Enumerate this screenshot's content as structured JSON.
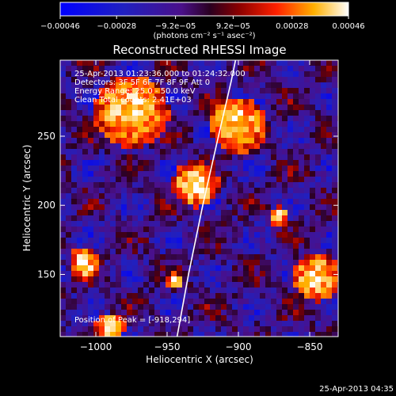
{
  "chart_data": {
    "type": "heatmap",
    "title": "Reconstructed RHESSI Image",
    "xlabel": "Heliocentric X (arcsec)",
    "ylabel": "Heliocentric Y (arcsec)",
    "xlim": [
      -1025,
      -830
    ],
    "ylim": [
      105,
      305
    ],
    "x_ticks": [
      -1000,
      -950,
      -900,
      -850
    ],
    "x_tick_labels": [
      "−1000",
      "−950",
      "−900",
      "−850"
    ],
    "y_ticks": [
      150,
      200,
      250
    ],
    "y_tick_labels": [
      "150",
      "200",
      "250"
    ],
    "colorbar": {
      "range": [
        -0.00046,
        0.00046
      ],
      "ticks": [
        -0.00046,
        -0.00028,
        -9.2e-05,
        9.2e-05,
        0.00028,
        0.00046
      ],
      "tick_labels": [
        "−0.00046",
        "−0.00028",
        "−9.2e−05",
        "9.2e−05",
        "0.00028",
        "0.00046"
      ],
      "units_label": "(photons cm⁻² s⁻¹ asec⁻²)"
    },
    "annotations": [
      "25-Apr-2013 01:23:36.000 to 01:24:32.000",
      "Detectors: 3F 5F 6F 7F 8F 9F  Att 0",
      "Energy Range: 25.0 - 50.0 keV",
      "Clean     Total counts: 2.41E+03"
    ],
    "peak_label": "Position of Peak = [-918,294]",
    "peak_position": [
      -918,
      294
    ],
    "limb_curve": [
      [
        -943,
        105
      ],
      [
        -935,
        150
      ],
      [
        -925,
        200
      ],
      [
        -914,
        250
      ],
      [
        -905,
        290
      ],
      [
        -902,
        305
      ]
    ],
    "bright_regions": [
      {
        "x": -975,
        "y": 268,
        "w": 45,
        "h": 45
      },
      {
        "x": -900,
        "y": 258,
        "w": 35,
        "h": 35
      },
      {
        "x": -930,
        "y": 215,
        "w": 28,
        "h": 28
      },
      {
        "x": -845,
        "y": 148,
        "w": 28,
        "h": 30
      },
      {
        "x": -1008,
        "y": 158,
        "w": 18,
        "h": 20
      },
      {
        "x": -945,
        "y": 145,
        "w": 10,
        "h": 10
      },
      {
        "x": -872,
        "y": 192,
        "w": 12,
        "h": 12
      },
      {
        "x": -990,
        "y": 112,
        "w": 20,
        "h": 15
      }
    ]
  },
  "footer_timestamp": "25-Apr-2013 04:35"
}
